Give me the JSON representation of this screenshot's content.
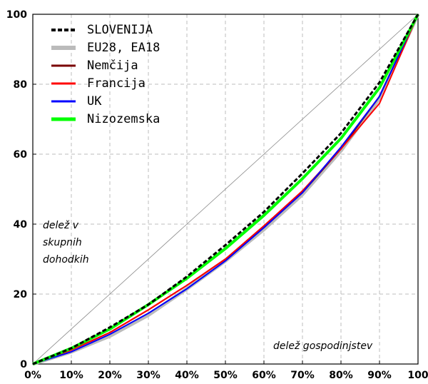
{
  "chart_data": {
    "type": "line",
    "title": "",
    "xlabel": "delež gospodinjstev",
    "ylabel_lines": [
      "delež v",
      "skupnih",
      "dohodkih"
    ],
    "xlim": [
      0,
      100
    ],
    "ylim": [
      0,
      100
    ],
    "grid": true,
    "legend_position": "top-left",
    "x_ticks": [
      0,
      10,
      20,
      30,
      40,
      50,
      60,
      70,
      80,
      90,
      100
    ],
    "x_tick_labels": [
      "0%",
      "10%",
      "20%",
      "30%",
      "40%",
      "50%",
      "60%",
      "70%",
      "80%",
      "90%",
      "100"
    ],
    "y_ticks": [
      0,
      20,
      40,
      60,
      80,
      100
    ],
    "y_tick_labels": [
      "0",
      "20",
      "40",
      "60",
      "80",
      "100"
    ],
    "x": [
      0,
      10,
      20,
      30,
      40,
      50,
      60,
      70,
      80,
      90,
      100
    ],
    "series": [
      {
        "name": "EU28, EA18",
        "color": "#bbbbbb",
        "style": "thick",
        "values": [
          0,
          3.5,
          8,
          14,
          21.5,
          29.5,
          38.5,
          48.5,
          61,
          76,
          100
        ]
      },
      {
        "name": "Nemčija",
        "color": "#7a0000",
        "style": "solid",
        "values": [
          0,
          4,
          9,
          15.5,
          22.5,
          30,
          39,
          49,
          61.5,
          76.5,
          100
        ]
      },
      {
        "name": "Francija",
        "color": "#ff0000",
        "style": "solid",
        "values": [
          0,
          4,
          9,
          15.5,
          22.5,
          30,
          39.5,
          49.5,
          61.5,
          74.5,
          100
        ]
      },
      {
        "name": "UK",
        "color": "#0000ff",
        "style": "solid",
        "values": [
          0,
          3.5,
          8.5,
          14.5,
          21.5,
          29.5,
          39,
          49,
          62,
          76.5,
          100
        ]
      },
      {
        "name": "Nizozemska",
        "color": "#00ff00",
        "style": "thick",
        "values": [
          0,
          4.5,
          10,
          17,
          24.5,
          33,
          42.5,
          53,
          64.5,
          79,
          100
        ]
      },
      {
        "name": "SLOVENIJA",
        "color": "#000000",
        "style": "dashed",
        "values": [
          0,
          4.5,
          10.5,
          17,
          25,
          34,
          43.5,
          54.5,
          66,
          80.5,
          100
        ]
      }
    ],
    "legend_order": [
      "SLOVENIJA",
      "EU28, EA18",
      "Nemčija",
      "Francija",
      "UK",
      "Nizozemska"
    ],
    "equality_line": {
      "color": "#888888",
      "values": [
        0,
        100
      ]
    }
  }
}
